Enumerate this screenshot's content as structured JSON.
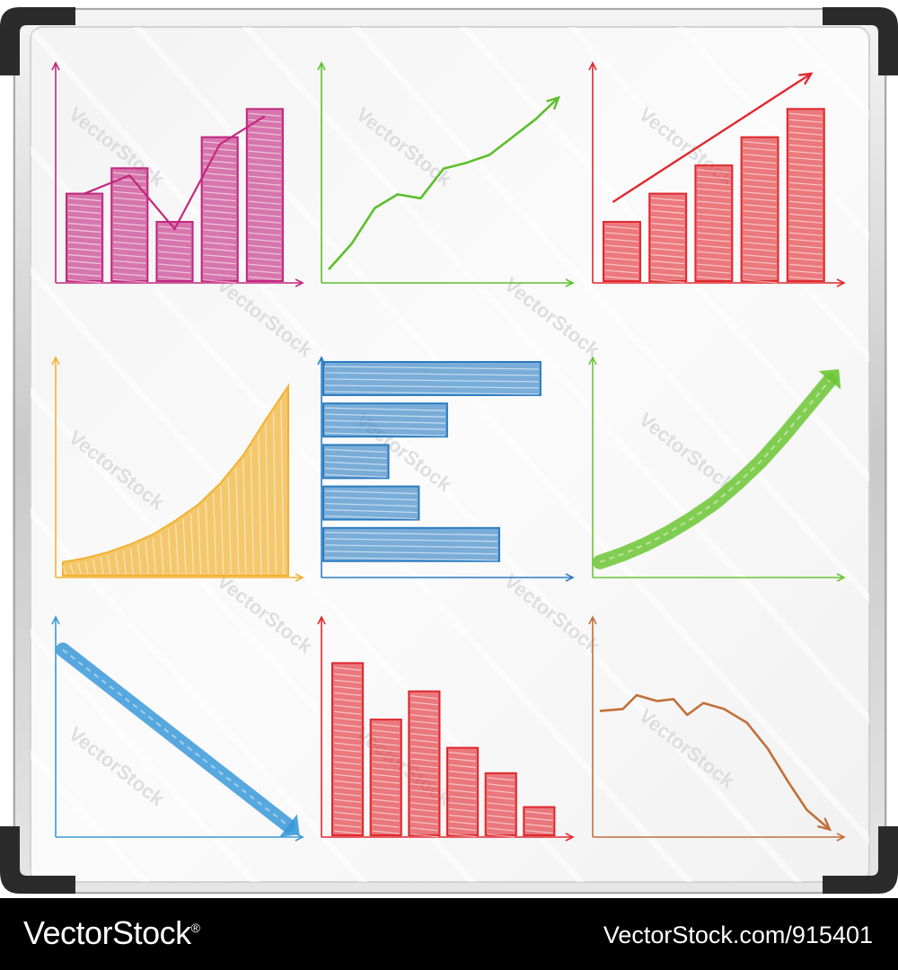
{
  "footer": {
    "brand": "VectorStock",
    "reg_mark": "®",
    "id_text": "VectorStock.com/915401"
  },
  "watermark": {
    "text": "VectorStock"
  },
  "colors": {
    "magenta": "#c2277f",
    "green": "#5cbf2a",
    "red": "#e0282e",
    "orange": "#f2b230",
    "blue": "#2a7cc2",
    "lightgreen": "#6cc534",
    "skyblue": "#3a99d9",
    "brown": "#c0703a"
  },
  "chart_data": [
    {
      "id": "c1",
      "type": "bar",
      "color": "magenta",
      "values": [
        3.1,
        4.0,
        2.1,
        5.1,
        6.1
      ],
      "overlay_line": true,
      "xlim": [
        0,
        5
      ],
      "ylim": [
        0,
        7
      ]
    },
    {
      "id": "c2",
      "type": "line",
      "color": "green",
      "x": [
        0,
        1,
        2,
        3,
        4,
        5,
        6,
        7,
        8,
        9,
        10
      ],
      "y": [
        0.5,
        1.8,
        3.6,
        4.3,
        4.1,
        5.6,
        5.9,
        6.3,
        7.2,
        8.1,
        9.2
      ],
      "xlim": [
        0,
        10
      ],
      "ylim": [
        0,
        10
      ],
      "end_arrow": true
    },
    {
      "id": "c3",
      "type": "bar",
      "color": "red",
      "values": [
        2.1,
        3.1,
        4.1,
        5.1,
        6.1
      ],
      "trend_arrow": true,
      "xlim": [
        0,
        5
      ],
      "ylim": [
        0,
        7
      ]
    },
    {
      "id": "c4",
      "type": "area",
      "color": "orange",
      "x": [
        0,
        1,
        2,
        3,
        4,
        5,
        6,
        7,
        8,
        9,
        10
      ],
      "y": [
        0.6,
        0.8,
        1.1,
        1.5,
        2.0,
        2.7,
        3.5,
        4.6,
        6.0,
        7.8,
        9.5
      ],
      "xlim": [
        0,
        10
      ],
      "ylim": [
        0,
        10
      ]
    },
    {
      "id": "c5",
      "type": "bar",
      "orientation": "horizontal",
      "color": "blue",
      "values": [
        10,
        5.7,
        3.0,
        4.4,
        8.1
      ],
      "xlim": [
        0,
        10.5
      ]
    },
    {
      "id": "c6",
      "type": "line",
      "color": "lightgreen",
      "x": [
        0,
        1,
        2,
        3,
        4,
        5,
        6,
        7,
        8,
        9,
        10
      ],
      "y": [
        0.6,
        1.0,
        1.5,
        2.1,
        2.8,
        3.6,
        4.6,
        5.7,
        7.0,
        8.4,
        9.8
      ],
      "xlim": [
        0,
        10
      ],
      "ylim": [
        0,
        10
      ],
      "thick_arrow": true
    },
    {
      "id": "c7",
      "type": "line",
      "color": "skyblue",
      "x": [
        0,
        10
      ],
      "y": [
        9.3,
        0.4
      ],
      "xlim": [
        0,
        10
      ],
      "ylim": [
        0,
        10
      ],
      "thick_arrow": true
    },
    {
      "id": "c8",
      "type": "bar",
      "color": "red",
      "values": [
        6.1,
        4.1,
        5.1,
        3.1,
        2.2,
        1.0
      ],
      "xlim": [
        0,
        6
      ],
      "ylim": [
        0,
        7
      ]
    },
    {
      "id": "c9",
      "type": "line",
      "color": "brown",
      "x": [
        0,
        1,
        1.6,
        2.5,
        3.2,
        3.8,
        4.5,
        5.4,
        6.4,
        7.3,
        8.2,
        9.0,
        10
      ],
      "y": [
        6.2,
        6.3,
        7.0,
        6.7,
        6.8,
        6.0,
        6.6,
        6.3,
        5.6,
        4.3,
        2.6,
        1.2,
        0.2
      ],
      "xlim": [
        0,
        10
      ],
      "ylim": [
        0,
        10
      ],
      "end_arrow": true
    }
  ]
}
